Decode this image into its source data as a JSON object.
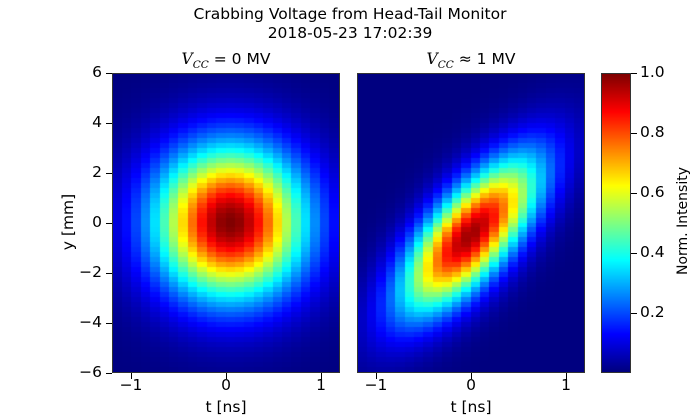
{
  "chart_data": [
    {
      "type": "heatmap",
      "title": "Crabbing Voltage from Head-Tail Monitor\n2018-05-23 17:02:39",
      "subplot_title": "V_CC = 0 MV",
      "xlabel": "t [ns]",
      "ylabel": "y [mm]",
      "xlim": [
        -1.2,
        1.2
      ],
      "ylim": [
        -6,
        6
      ],
      "xticks": [
        -1,
        0,
        1
      ],
      "yticks": [
        -6,
        -4,
        -2,
        0,
        2,
        4,
        6
      ],
      "grid": false,
      "colormap": "jet",
      "clim": [
        0.0,
        1.0
      ],
      "n_columns": 24,
      "n_rows": 60,
      "model": {
        "x0": 0.05,
        "y0": 0.0,
        "sigma_t": 0.55,
        "sigma_y": 2.1,
        "tilt_mm_per_ns": 0.0,
        "peak": 1.0
      }
    },
    {
      "type": "heatmap",
      "subplot_title": "V_CC ≈ 1 MV",
      "xlabel": "t [ns]",
      "ylabel": "",
      "xlim": [
        -1.2,
        1.2
      ],
      "ylim": [
        -6,
        6
      ],
      "xticks": [
        -1,
        0,
        1
      ],
      "yticks": [],
      "grid": false,
      "colormap": "jet",
      "clim": [
        0.0,
        1.0
      ],
      "n_columns": 24,
      "n_rows": 60,
      "model": {
        "x0": 0.0,
        "y0": -0.5,
        "sigma_t": 0.5,
        "sigma_y": 1.5,
        "tilt_mm_per_ns": 3.0,
        "peak": 0.97
      }
    }
  ],
  "figure": {
    "title_line1": "Crabbing Voltage from Head-Tail Monitor",
    "title_line2": "2018-05-23 17:02:39",
    "left": {
      "title_var": "V",
      "title_sub": "CC",
      "title_rest": " = 0 MV",
      "xlabel": "t [ns]",
      "ylabel": "y [mm]",
      "xtick_labels": [
        "−1",
        "0",
        "1"
      ],
      "ytick_labels": [
        "6",
        "4",
        "2",
        "0",
        "−2",
        "−4",
        "−6"
      ]
    },
    "right": {
      "title_var": "V",
      "title_sub": "CC",
      "title_rest": " ≈ 1 MV",
      "xlabel": "t [ns]",
      "xtick_labels": [
        "−1",
        "0",
        "1"
      ]
    },
    "colorbar": {
      "label": "Norm. Intensity",
      "tick_labels": [
        "1.0",
        "0.8",
        "0.6",
        "0.4",
        "0.2"
      ],
      "ticks": [
        1.0,
        0.8,
        0.6,
        0.4,
        0.2
      ],
      "range": [
        0.0,
        1.0
      ]
    }
  }
}
